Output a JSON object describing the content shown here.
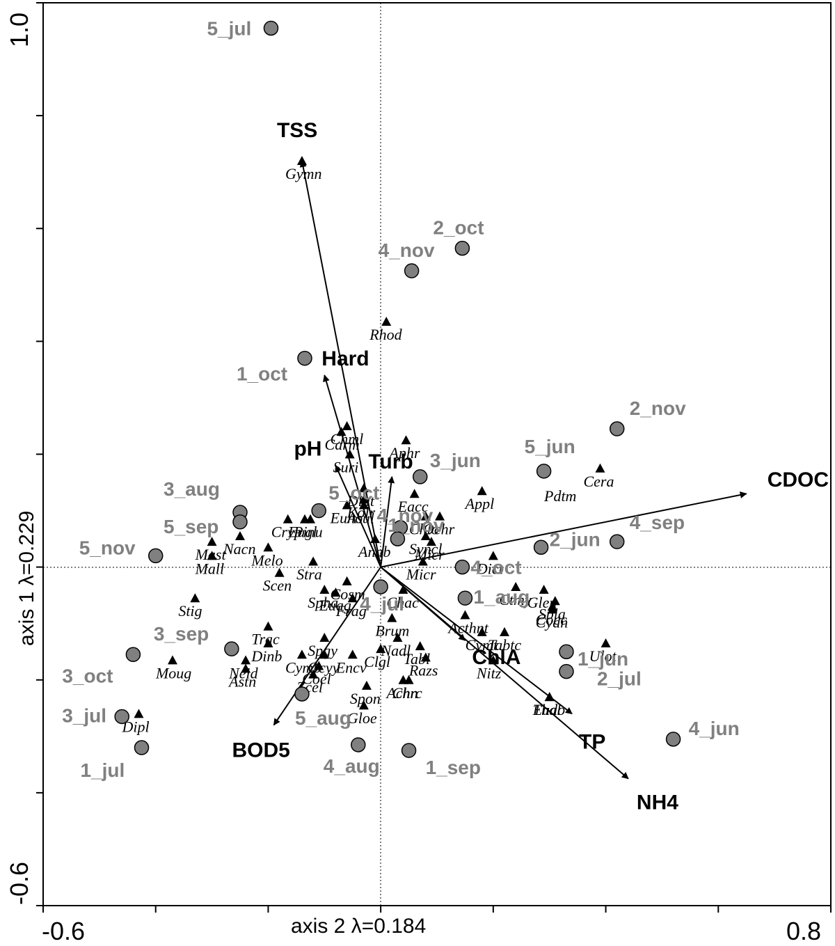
{
  "chart_data": {
    "type": "scatter",
    "xlabel": "axis 2 λ=0.184",
    "ylabel": "axis 1 λ=0.229",
    "xlim": [
      -0.6,
      0.8
    ],
    "ylim": [
      -0.6,
      1.0
    ],
    "x_tick_labels": [
      "-0.6",
      "0.8"
    ],
    "y_tick_labels": [
      "1.0",
      "-0.6"
    ],
    "zero_lines": true,
    "environmental_vectors": [
      {
        "label": "TSS",
        "x": -0.14,
        "y": 0.72
      },
      {
        "label": "Hard",
        "x": -0.1,
        "y": 0.34
      },
      {
        "label": "pH",
        "x": -0.08,
        "y": 0.18
      },
      {
        "label": "Turb",
        "x": 0.02,
        "y": 0.16
      },
      {
        "label": "CDOC",
        "x": 0.65,
        "y": 0.13
      },
      {
        "label": "ChlA",
        "x": 0.15,
        "y": -0.13
      },
      {
        "label": "TP",
        "x": 0.34,
        "y": -0.26
      },
      {
        "label": "NH4",
        "x": 0.44,
        "y": -0.375
      },
      {
        "label": "BOD5",
        "x": -0.19,
        "y": -0.28
      }
    ],
    "sites": [
      {
        "label": "5_jul",
        "x": -0.195,
        "y": 0.955
      },
      {
        "label": "2_oct",
        "x": 0.145,
        "y": 0.565
      },
      {
        "label": "4_nov",
        "x": 0.055,
        "y": 0.525
      },
      {
        "label": "1_oct",
        "x": -0.135,
        "y": 0.37
      },
      {
        "label": "2_nov",
        "x": 0.42,
        "y": 0.245
      },
      {
        "label": "5_jun",
        "x": 0.29,
        "y": 0.17
      },
      {
        "label": "3_jun",
        "x": 0.07,
        "y": 0.16
      },
      {
        "label": "3_aug",
        "x": -0.25,
        "y": 0.097
      },
      {
        "label": "5_sep",
        "x": -0.25,
        "y": 0.08
      },
      {
        "label": "5_oct",
        "x": -0.11,
        "y": 0.1
      },
      {
        "label": "4_nov",
        "x": 0.035,
        "y": 0.07
      },
      {
        "label": "1_nov",
        "x": 0.03,
        "y": 0.05
      },
      {
        "label": "4_sep",
        "x": 0.42,
        "y": 0.045
      },
      {
        "label": "2_jun",
        "x": 0.285,
        "y": 0.035
      },
      {
        "label": "5_nov",
        "x": -0.4,
        "y": 0.02
      },
      {
        "label": "4_oct",
        "x": 0.145,
        "y": 0.0
      },
      {
        "label": "4_jul",
        "x": 0.0,
        "y": -0.035
      },
      {
        "label": "1_aug",
        "x": 0.15,
        "y": -0.055
      },
      {
        "label": "3_sep",
        "x": -0.265,
        "y": -0.145
      },
      {
        "label": "3_oct",
        "x": -0.44,
        "y": -0.155
      },
      {
        "label": "1_jun",
        "x": 0.33,
        "y": -0.15
      },
      {
        "label": "2_jul",
        "x": 0.33,
        "y": -0.185
      },
      {
        "label": "5_aug",
        "x": -0.14,
        "y": -0.225
      },
      {
        "label": "3_jul",
        "x": -0.46,
        "y": -0.265
      },
      {
        "label": "1_jul",
        "x": -0.425,
        "y": -0.32
      },
      {
        "label": "4_aug",
        "x": -0.04,
        "y": -0.315
      },
      {
        "label": "1_sep",
        "x": 0.05,
        "y": -0.325
      },
      {
        "label": "4_jun",
        "x": 0.52,
        "y": -0.305
      }
    ],
    "species": [
      {
        "label": "Gymn",
        "x": -0.14,
        "y": 0.72
      },
      {
        "label": "Rhod",
        "x": 0.01,
        "y": 0.435
      },
      {
        "label": "Cera",
        "x": 0.39,
        "y": 0.175
      },
      {
        "label": "Appl",
        "x": 0.18,
        "y": 0.135
      },
      {
        "label": "Pdtm",
        "x": null,
        "y": null
      },
      {
        "label": "Aphr",
        "x": 0.045,
        "y": 0.225
      },
      {
        "label": "Chml",
        "x": -0.06,
        "y": 0.25
      },
      {
        "label": "Carm",
        "x": -0.07,
        "y": 0.24
      },
      {
        "label": "Suri",
        "x": -0.055,
        "y": 0.2
      },
      {
        "label": "Diat",
        "x": -0.03,
        "y": 0.14
      },
      {
        "label": "Euno",
        "x": -0.06,
        "y": 0.11
      },
      {
        "label": "Cryp",
        "x": -0.165,
        "y": 0.085
      },
      {
        "label": "Pinu",
        "x": -0.125,
        "y": 0.085
      },
      {
        "label": "Eugl",
        "x": -0.135,
        "y": 0.085
      },
      {
        "label": "Nacn",
        "x": -0.25,
        "y": 0.055
      },
      {
        "label": "Mast",
        "x": -0.3,
        "y": 0.045
      },
      {
        "label": "Melo",
        "x": -0.2,
        "y": 0.035
      },
      {
        "label": "Mall",
        "x": -0.3,
        "y": 0.02
      },
      {
        "label": "Stra",
        "x": -0.12,
        "y": 0.01
      },
      {
        "label": "Scen",
        "x": -0.18,
        "y": -0.01
      },
      {
        "label": "Stig",
        "x": -0.33,
        "y": -0.055
      },
      {
        "label": "Cosm",
        "x": -0.06,
        "y": -0.025
      },
      {
        "label": "Spha",
        "x": -0.1,
        "y": -0.04
      },
      {
        "label": "Euag",
        "x": -0.08,
        "y": -0.045
      },
      {
        "label": "Frag",
        "x": -0.05,
        "y": -0.055
      },
      {
        "label": "Trac",
        "x": -0.2,
        "y": -0.105
      },
      {
        "label": "Dinb",
        "x": -0.2,
        "y": -0.135
      },
      {
        "label": "Neid",
        "x": -0.24,
        "y": -0.165
      },
      {
        "label": "Astn",
        "x": -0.24,
        "y": -0.18
      },
      {
        "label": "Moug",
        "x": -0.37,
        "y": -0.165
      },
      {
        "label": "Dipl",
        "x": -0.43,
        "y": -0.26
      },
      {
        "label": "Spgy",
        "x": -0.1,
        "y": -0.125
      },
      {
        "label": "Ocyy",
        "x": -0.1,
        "y": -0.155
      },
      {
        "label": "Cymb",
        "x": -0.14,
        "y": -0.155
      },
      {
        "label": "Encv",
        "x": -0.05,
        "y": -0.155
      },
      {
        "label": "Coel",
        "x": -0.11,
        "y": -0.175
      },
      {
        "label": "Zcel",
        "x": -0.12,
        "y": -0.19
      },
      {
        "label": "Spon",
        "x": -0.025,
        "y": -0.21
      },
      {
        "label": "Gloe",
        "x": -0.03,
        "y": -0.245
      },
      {
        "label": "Chrc",
        "x": 0.05,
        "y": -0.2
      },
      {
        "label": "Achn",
        "x": 0.04,
        "y": -0.2
      },
      {
        "label": "Tabl",
        "x": 0.07,
        "y": -0.14
      },
      {
        "label": "Nadl",
        "x": 0.03,
        "y": -0.125
      },
      {
        "label": "Clgl",
        "x": 0.0,
        "y": -0.145
      },
      {
        "label": "Razs",
        "x": 0.08,
        "y": -0.16
      },
      {
        "label": "Brum",
        "x": 0.02,
        "y": -0.09
      },
      {
        "label": "Chac",
        "x": 0.04,
        "y": -0.04
      },
      {
        "label": "Acthnt",
        "x": 0.15,
        "y": -0.085
      },
      {
        "label": "Cymt",
        "x": 0.18,
        "y": -0.115
      },
      {
        "label": "Tabtc",
        "x": 0.22,
        "y": -0.115
      },
      {
        "label": "Nitz",
        "x": 0.2,
        "y": -0.165
      },
      {
        "label": "Eudo",
        "x": 0.3,
        "y": -0.23
      },
      {
        "label": "Thal",
        "x": 0.3,
        "y": -0.23
      },
      {
        "label": "Ulot",
        "x": 0.4,
        "y": -0.135
      },
      {
        "label": "Cocc",
        "x": 0.305,
        "y": -0.07
      },
      {
        "label": "Cydn",
        "x": 0.305,
        "y": -0.075
      },
      {
        "label": "Spla",
        "x": 0.31,
        "y": -0.06
      },
      {
        "label": "Glen",
        "x": 0.29,
        "y": -0.04
      },
      {
        "label": "Ctmy",
        "x": 0.24,
        "y": -0.035
      },
      {
        "label": "Dict",
        "x": 0.2,
        "y": 0.02
      },
      {
        "label": "Micr",
        "x": 0.075,
        "y": 0.01
      },
      {
        "label": "Micr",
        "x": 0.09,
        "y": 0.045
      },
      {
        "label": "Syncl",
        "x": 0.08,
        "y": 0.055
      },
      {
        "label": "Ochr",
        "x": 0.105,
        "y": 0.09
      },
      {
        "label": "Chlo",
        "x": 0.08,
        "y": 0.09
      },
      {
        "label": "Eacc",
        "x": 0.06,
        "y": 0.13
      },
      {
        "label": "Anab",
        "x": -0.01,
        "y": 0.05
      },
      {
        "label": "Asul",
        "x": -0.03,
        "y": 0.11
      },
      {
        "label": "Kolr",
        "x": -0.03,
        "y": 0.12
      }
    ]
  }
}
